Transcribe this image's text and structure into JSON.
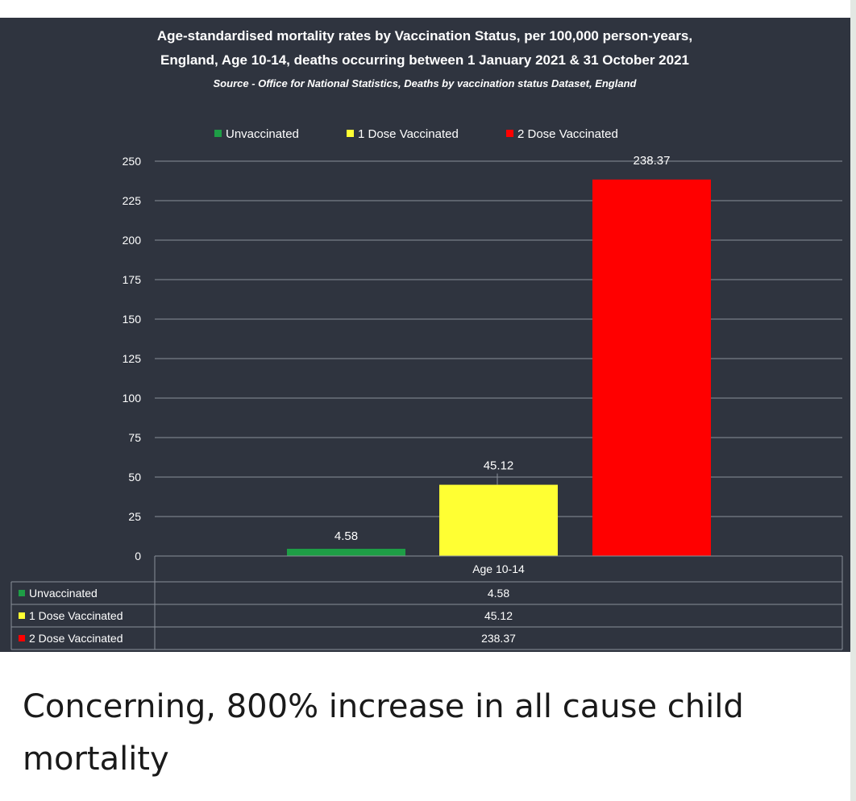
{
  "chart_data": {
    "type": "bar",
    "title_line1": "Age-standardised mortality rates by Vaccination Status, per 100,000 person-years,",
    "title_line2": "England, Age 10-14, deaths occurring between 1 January 2021 & 31 October 2021",
    "subtitle": "Source - Office for National Statistics, Deaths by vaccination status Dataset, England",
    "category": "Age 10-14",
    "series": [
      {
        "name": "Unvaccinated",
        "value": 4.58,
        "label": "4.58",
        "color": "#1e9e46"
      },
      {
        "name": "1 Dose Vaccinated",
        "value": 45.12,
        "label": "45.12",
        "color": "#ffff33"
      },
      {
        "name": "2 Dose Vaccinated",
        "value": 238.37,
        "label": "238.37",
        "color": "#ff0000"
      }
    ],
    "y_ticks": [
      "0",
      "25",
      "50",
      "75",
      "100",
      "125",
      "150",
      "175",
      "200",
      "225",
      "250"
    ],
    "ylim": [
      0,
      250
    ],
    "legend_position": "top",
    "data_table": true
  },
  "caption": "Concerning, 800% increase in all cause child mortality",
  "colors": {
    "panel_bg": "#2f343f",
    "grid": "#8a8f98",
    "text": "#ffffff"
  }
}
